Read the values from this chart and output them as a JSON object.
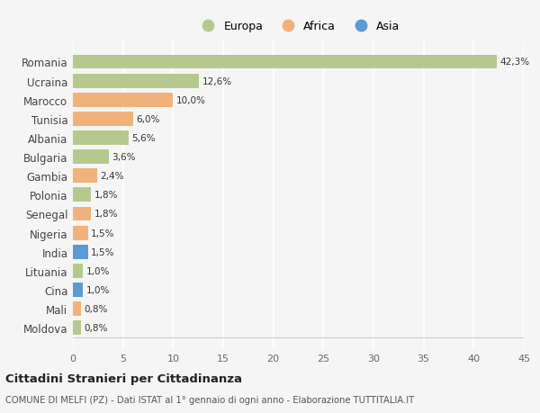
{
  "countries": [
    "Romania",
    "Ucraina",
    "Marocco",
    "Tunisia",
    "Albania",
    "Bulgaria",
    "Gambia",
    "Polonia",
    "Senegal",
    "Nigeria",
    "India",
    "Lituania",
    "Cina",
    "Mali",
    "Moldova"
  ],
  "values": [
    42.3,
    12.6,
    10.0,
    6.0,
    5.6,
    3.6,
    2.4,
    1.8,
    1.8,
    1.5,
    1.5,
    1.0,
    1.0,
    0.8,
    0.8
  ],
  "labels": [
    "42,3%",
    "12,6%",
    "10,0%",
    "6,0%",
    "5,6%",
    "3,6%",
    "2,4%",
    "1,8%",
    "1,8%",
    "1,5%",
    "1,5%",
    "1,0%",
    "1,0%",
    "0,8%",
    "0,8%"
  ],
  "continents": [
    "Europa",
    "Europa",
    "Africa",
    "Africa",
    "Europa",
    "Europa",
    "Africa",
    "Europa",
    "Africa",
    "Africa",
    "Asia",
    "Europa",
    "Asia",
    "Africa",
    "Europa"
  ],
  "colors": {
    "Europa": "#b5c98e",
    "Africa": "#f0b27a",
    "Asia": "#5b9bd5"
  },
  "background_color": "#f5f5f5",
  "title": "Cittadini Stranieri per Cittadinanza",
  "subtitle": "COMUNE DI MELFI (PZ) - Dati ISTAT al 1° gennaio di ogni anno - Elaborazione TUTTITALIA.IT",
  "xlim": [
    0,
    45
  ],
  "xticks": [
    0,
    5,
    10,
    15,
    20,
    25,
    30,
    35,
    40,
    45
  ],
  "legend_labels": [
    "Europa",
    "Africa",
    "Asia"
  ],
  "legend_colors": [
    "#b5c98e",
    "#f0b27a",
    "#5b9bd5"
  ]
}
